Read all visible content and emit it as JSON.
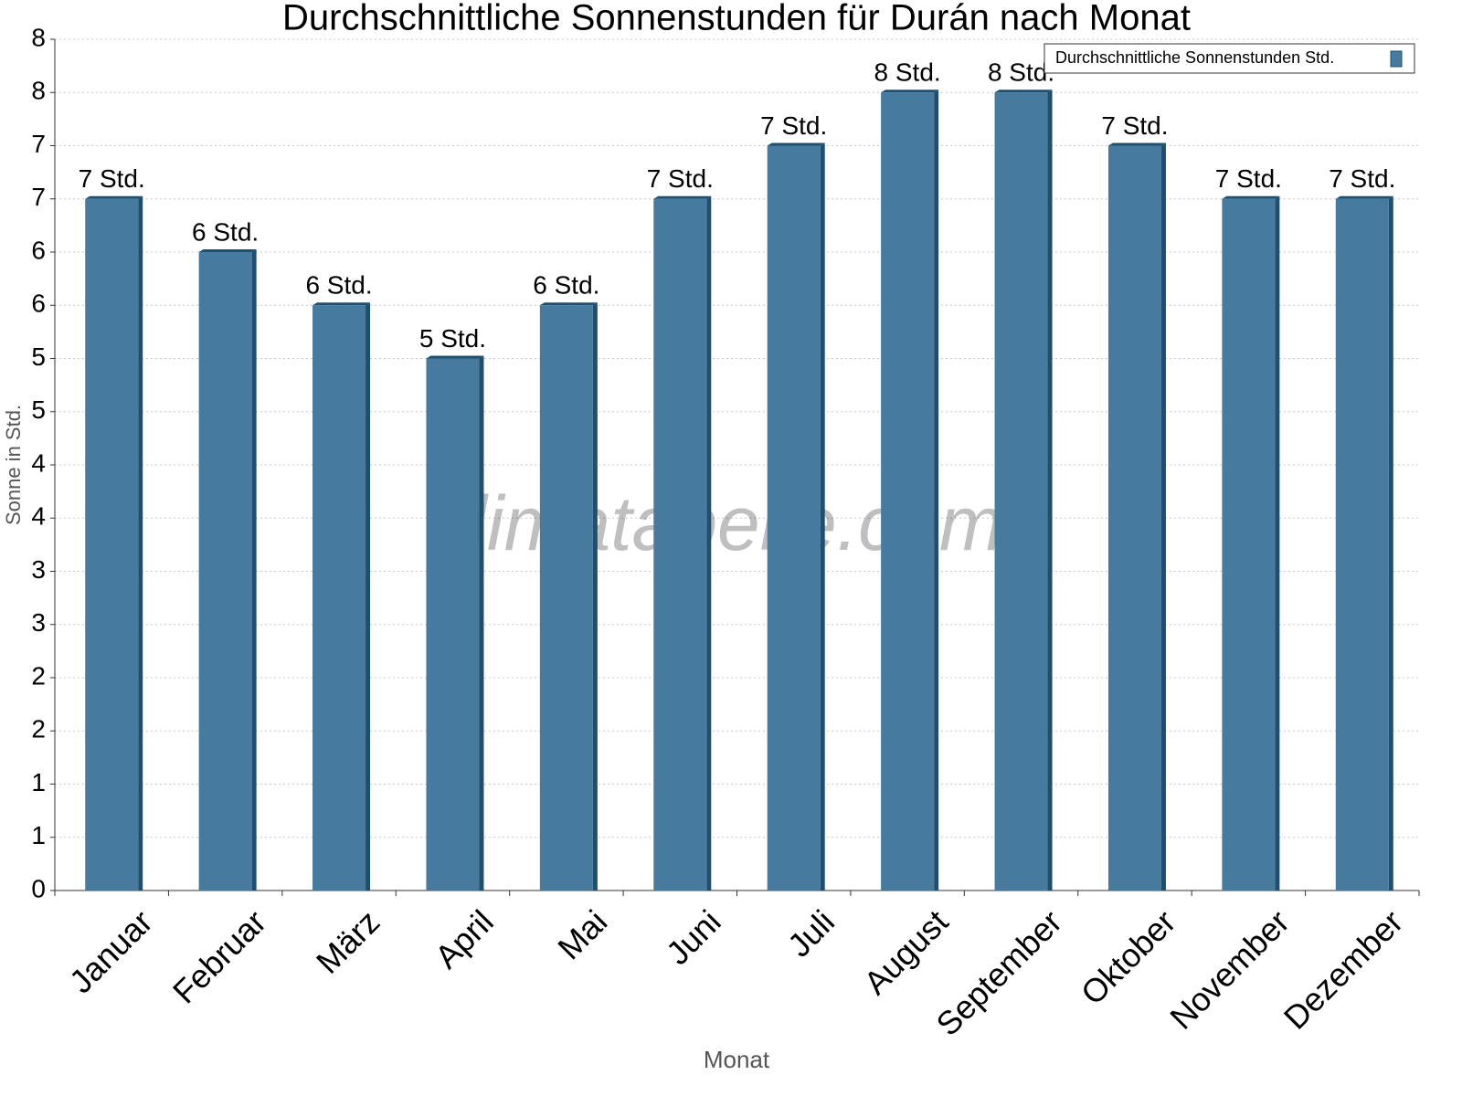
{
  "chart_data": {
    "type": "bar",
    "title": "Durchschnittliche Sonnenstunden für Durán nach Monat",
    "x_label": "Monat",
    "y_label": "Sonne in Std.",
    "watermark": "klimatabelle.com",
    "categories": [
      "Januar",
      "Februar",
      "März",
      "April",
      "Mai",
      "Juni",
      "Juli",
      "August",
      "September",
      "Oktober",
      "November",
      "Dezember"
    ],
    "series": [
      {
        "name": "Durchschnittliche Sonnenstunden Std.",
        "color": "#467b9f",
        "values": [
          6.5,
          6,
          5.5,
          5,
          5.5,
          6.5,
          7,
          7.5,
          7.5,
          7,
          6.5,
          6.5
        ],
        "value_labels": [
          "7 Std.",
          "6 Std.",
          "6 Std.",
          "5 Std.",
          "6 Std.",
          "7 Std.",
          "7 Std.",
          "8 Std.",
          "8 Std.",
          "7 Std.",
          "7 Std.",
          "7 Std."
        ]
      }
    ],
    "ylim": [
      0,
      8
    ],
    "yticks": [
      0,
      {
        "value": 0.5,
        "label": "1"
      },
      1,
      {
        "value": 1.5,
        "label": "2"
      },
      2,
      {
        "value": 2.5,
        "label": "3"
      },
      3,
      {
        "value": 3.5,
        "label": "4"
      },
      4,
      {
        "value": 4.5,
        "label": "5"
      },
      5,
      {
        "value": 5.5,
        "label": "6"
      },
      6,
      {
        "value": 6.5,
        "label": "7"
      },
      7,
      {
        "value": 7.5,
        "label": "8"
      },
      8
    ],
    "grid": true,
    "legend": "top-right"
  }
}
